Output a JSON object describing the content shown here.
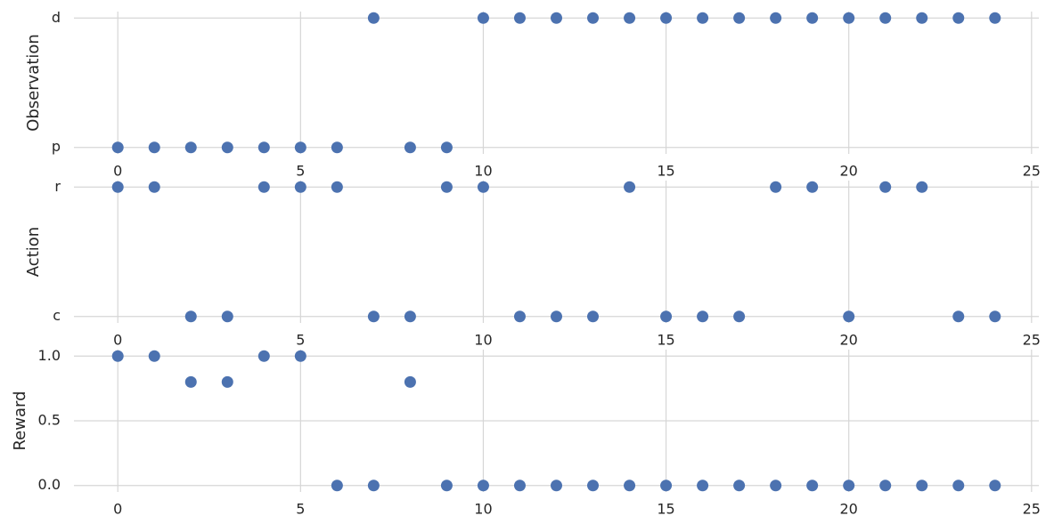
{
  "chart_data": [
    {
      "type": "scatter",
      "ylabel": "Observation",
      "ycategories": [
        "p",
        "d"
      ],
      "x": [
        0,
        1,
        2,
        3,
        4,
        5,
        6,
        7,
        8,
        9,
        10,
        11,
        12,
        13,
        14,
        15,
        16,
        17,
        18,
        19,
        20,
        21,
        22,
        23,
        24
      ],
      "values": [
        "p",
        "p",
        "p",
        "p",
        "p",
        "p",
        "p",
        "d",
        "p",
        "p",
        "d",
        "d",
        "d",
        "d",
        "d",
        "d",
        "d",
        "d",
        "d",
        "d",
        "d",
        "d",
        "d",
        "d",
        "d"
      ],
      "xlim": [
        -1.2,
        25.2
      ],
      "xticks": [
        0,
        5,
        10,
        15,
        20,
        25
      ],
      "color": "#4c72b0",
      "grid": true
    },
    {
      "type": "scatter",
      "ylabel": "Action",
      "ycategories": [
        "c",
        "r"
      ],
      "x": [
        0,
        1,
        2,
        3,
        4,
        5,
        6,
        7,
        8,
        9,
        10,
        11,
        12,
        13,
        14,
        15,
        16,
        17,
        18,
        19,
        20,
        21,
        22,
        23,
        24
      ],
      "values": [
        "r",
        "r",
        "c",
        "c",
        "r",
        "r",
        "r",
        "c",
        "c",
        "r",
        "r",
        "c",
        "c",
        "c",
        "r",
        "c",
        "c",
        "c",
        "r",
        "r",
        "c",
        "r",
        "r",
        "c",
        "c"
      ],
      "xlim": [
        -1.2,
        25.2
      ],
      "xticks": [
        0,
        5,
        10,
        15,
        20,
        25
      ],
      "color": "#4c72b0",
      "grid": true
    },
    {
      "type": "scatter",
      "ylabel": "Reward",
      "x": [
        0,
        1,
        2,
        3,
        4,
        5,
        6,
        7,
        8,
        9,
        10,
        11,
        12,
        13,
        14,
        15,
        16,
        17,
        18,
        19,
        20,
        21,
        22,
        23,
        24
      ],
      "values": [
        1,
        1,
        0.8,
        0.8,
        1,
        1,
        0,
        0,
        0.8,
        0,
        0,
        0,
        0,
        0,
        0,
        0,
        0,
        0,
        0,
        0,
        0,
        0,
        0,
        0,
        0
      ],
      "xlim": [
        -1.2,
        25.2
      ],
      "xticks": [
        0,
        5,
        10,
        15,
        20,
        25
      ],
      "ylim": [
        -0.05,
        1.05
      ],
      "yticks": [
        {
          "value": 0,
          "label": "0.0"
        },
        {
          "value": 0.5,
          "label": "0.5"
        },
        {
          "value": 1,
          "label": "1.0"
        }
      ],
      "color": "#4c72b0",
      "grid": true
    }
  ]
}
